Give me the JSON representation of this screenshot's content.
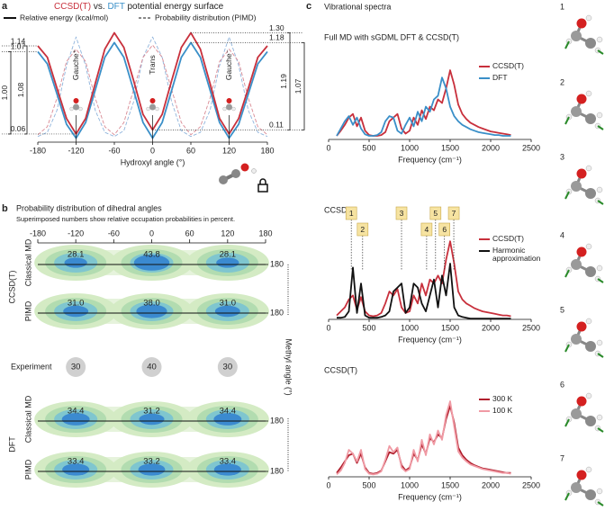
{
  "modes": [
    "1",
    "2",
    "3",
    "4",
    "5",
    "6",
    "7"
  ],
  "chart_data": [
    {
      "type": "line",
      "panel": "a",
      "title_parts": [
        {
          "text": "CCSD(T)",
          "color": "#c8303c"
        },
        {
          "text": " vs. ",
          "color": "#222222"
        },
        {
          "text": "DFT",
          "color": "#3a8fc8"
        },
        {
          "text": " potential energy surface",
          "color": "#222222"
        }
      ],
      "legend": [
        {
          "label": "Relative energy (kcal/mol)",
          "dash": false
        },
        {
          "label": "Probability distribution (PIMD)",
          "dash": true
        }
      ],
      "xlabel": "Hydroxyl angle (°)",
      "xlim": [
        -180,
        180
      ],
      "xticks": [
        -180,
        -120,
        -60,
        0,
        60,
        120,
        180
      ],
      "ylim": [
        -0.04,
        1.35
      ],
      "x": [
        -180,
        -165,
        -150,
        -135,
        -120,
        -105,
        -90,
        -75,
        -60,
        -45,
        -30,
        -15,
        0,
        15,
        30,
        45,
        60,
        75,
        90,
        105,
        120,
        135,
        150,
        165,
        180
      ],
      "series": [
        {
          "color": "#8fb4dc",
          "dash": true,
          "values": [
            0.03,
            0.08,
            0.35,
            0.9,
            1.25,
            0.9,
            0.35,
            0.08,
            0.03,
            0.1,
            0.45,
            1.0,
            1.25,
            1.0,
            0.45,
            0.1,
            0.03,
            0.08,
            0.35,
            0.9,
            1.25,
            0.9,
            0.35,
            0.08,
            0.03
          ]
        },
        {
          "color": "#d98a94",
          "dash": true,
          "values": [
            0.05,
            0.15,
            0.5,
            0.95,
            1.1,
            0.95,
            0.5,
            0.15,
            0.05,
            0.2,
            0.6,
            1.0,
            1.15,
            1.0,
            0.6,
            0.2,
            0.05,
            0.15,
            0.5,
            0.95,
            1.1,
            0.95,
            0.5,
            0.15,
            0.05
          ]
        },
        {
          "color": "#3a8fc8",
          "dash": false,
          "values": [
            1.07,
            0.92,
            0.55,
            0.18,
            0.01,
            0.2,
            0.6,
            1.0,
            1.18,
            1.0,
            0.6,
            0.2,
            0.01,
            0.2,
            0.6,
            1.0,
            1.18,
            1.0,
            0.6,
            0.2,
            0.01,
            0.18,
            0.55,
            0.92,
            1.07
          ]
        },
        {
          "color": "#c8303c",
          "dash": false,
          "values": [
            1.14,
            1.0,
            0.62,
            0.25,
            0.06,
            0.25,
            0.68,
            1.1,
            1.3,
            1.12,
            0.72,
            0.3,
            0.11,
            0.3,
            0.72,
            1.12,
            1.3,
            1.1,
            0.68,
            0.25,
            0.06,
            0.25,
            0.62,
            1.0,
            1.14
          ]
        }
      ],
      "annotations": [
        {
          "label": "Gauche⁺",
          "x": -120
        },
        {
          "label": "Trans",
          "x": 0
        },
        {
          "label": "Gauche⁻",
          "x": 120
        }
      ],
      "levels": [
        {
          "value": 1.14,
          "label": "1.14",
          "side": "left",
          "x": -180,
          "gap": "1.08"
        },
        {
          "value": 1.07,
          "label": "1.07",
          "side": "left",
          "x": -180,
          "gap": "1.00"
        },
        {
          "value": 0.06,
          "label": "0.06",
          "side": "left",
          "x": -120
        },
        {
          "value": 1.3,
          "label": "1.30",
          "side": "right",
          "x": 60,
          "gap": "1.19"
        },
        {
          "value": 1.18,
          "label": "1.18",
          "side": "right",
          "x": 60,
          "gap": "1.07"
        },
        {
          "value": 0.11,
          "label": "0.11",
          "side": "right",
          "x": 0
        }
      ]
    },
    {
      "type": "occupation",
      "panel": "b",
      "title": "Probability distribution of dihedral angles",
      "subtitle": "Superimposed numbers show relative occupation probabilities in percent.",
      "xlim": [
        -180,
        180
      ],
      "xticks": [
        -180,
        -120,
        -60,
        0,
        60,
        120,
        180
      ],
      "x": [
        -120,
        0,
        120
      ],
      "ylabel": "Methyl angle (°)",
      "methyl_tick": 180,
      "groups": [
        {
          "name": "CCSD(T)",
          "color": "#c8303c",
          "rows": [
            {
              "name": "Classical MD",
              "values": [
                28.1,
                43.8,
                28.1
              ]
            },
            {
              "name": "PIMD",
              "values": [
                31.0,
                38.0,
                31.0
              ],
              "value_labels": [
                "31.0",
                "38.0",
                "31.0"
              ]
            }
          ]
        },
        {
          "name": "DFT",
          "color": "#3a8fc8",
          "rows": [
            {
              "name": "Classical MD",
              "values": [
                34.4,
                31.2,
                34.4
              ]
            },
            {
              "name": "PIMD",
              "values": [
                33.4,
                33.2,
                33.4
              ]
            }
          ]
        }
      ],
      "experiment": {
        "name": "Experiment",
        "values": [
          30,
          40,
          30
        ]
      }
    },
    {
      "type": "line",
      "panel": "c",
      "panel_title": "Vibrational spectra",
      "title": "Full MD with sGDML DFT & CCSD(T)",
      "xlabel": "Frequency (cm⁻¹)",
      "xlim": [
        0,
        2500
      ],
      "xticks": [
        0,
        500,
        1000,
        1500,
        2000,
        2500
      ],
      "ylim": [
        0,
        1.05
      ],
      "legend": "upper right",
      "x": [
        100,
        150,
        200,
        250,
        300,
        350,
        400,
        450,
        500,
        550,
        600,
        650,
        700,
        750,
        800,
        850,
        900,
        950,
        1000,
        1050,
        1100,
        1150,
        1200,
        1250,
        1300,
        1350,
        1400,
        1450,
        1500,
        1550,
        1600,
        1650,
        1700,
        1750,
        1800,
        1850,
        1900,
        1950,
        2000,
        2050,
        2100,
        2150,
        2200,
        2250
      ],
      "series": [
        {
          "name": "CCSD(T)",
          "color": "#c8303c",
          "values": [
            0.05,
            0.12,
            0.2,
            0.3,
            0.35,
            0.18,
            0.3,
            0.12,
            0.06,
            0.05,
            0.05,
            0.06,
            0.1,
            0.25,
            0.3,
            0.35,
            0.15,
            0.08,
            0.12,
            0.3,
            0.2,
            0.4,
            0.28,
            0.45,
            0.4,
            0.55,
            0.5,
            0.7,
            0.95,
            0.75,
            0.48,
            0.35,
            0.28,
            0.23,
            0.2,
            0.17,
            0.15,
            0.13,
            0.11,
            0.1,
            0.09,
            0.08,
            0.07,
            0.06
          ]
        },
        {
          "name": "DFT",
          "color": "#3a8fc8",
          "values": [
            0.05,
            0.15,
            0.25,
            0.32,
            0.2,
            0.3,
            0.15,
            0.07,
            0.05,
            0.05,
            0.06,
            0.1,
            0.25,
            0.32,
            0.3,
            0.12,
            0.08,
            0.2,
            0.3,
            0.18,
            0.38,
            0.25,
            0.45,
            0.38,
            0.55,
            0.6,
            0.85,
            0.7,
            0.45,
            0.32,
            0.25,
            0.2,
            0.17,
            0.14,
            0.12,
            0.1,
            0.09,
            0.08,
            0.07,
            0.06,
            0.06,
            0.05,
            0.05,
            0.05
          ]
        }
      ]
    },
    {
      "type": "line",
      "title": "CCSD(T)",
      "xlabel": "Frequency (cm⁻¹)",
      "xlim": [
        0,
        2500
      ],
      "xticks": [
        0,
        500,
        1000,
        1500,
        2000,
        2500
      ],
      "ylim": [
        0,
        1.05
      ],
      "legend": "upper right",
      "x": [
        100,
        150,
        200,
        250,
        300,
        350,
        400,
        450,
        500,
        550,
        600,
        650,
        700,
        750,
        800,
        850,
        900,
        950,
        1000,
        1050,
        1100,
        1150,
        1200,
        1250,
        1300,
        1350,
        1400,
        1450,
        1500,
        1550,
        1600,
        1650,
        1700,
        1750,
        1800,
        1850,
        1900,
        1950,
        2000,
        2050,
        2100,
        2150,
        2200,
        2250
      ],
      "series": [
        {
          "name": "CCSD(T)",
          "color": "#c8303c",
          "values": [
            0.05,
            0.1,
            0.15,
            0.25,
            0.3,
            0.12,
            0.28,
            0.1,
            0.05,
            0.04,
            0.05,
            0.08,
            0.2,
            0.35,
            0.3,
            0.38,
            0.15,
            0.08,
            0.1,
            0.3,
            0.2,
            0.45,
            0.3,
            0.5,
            0.45,
            0.55,
            0.45,
            0.75,
            0.98,
            0.7,
            0.35,
            0.25,
            0.2,
            0.17,
            0.14,
            0.12,
            0.1,
            0.09,
            0.08,
            0.07,
            0.06,
            0.05,
            0.05,
            0.04
          ]
        },
        {
          "name": "Harmonic approximation",
          "color": "#111111",
          "values": [
            0.02,
            0.02,
            0.03,
            0.1,
            0.65,
            0.08,
            0.45,
            0.05,
            0.02,
            0.02,
            0.02,
            0.03,
            0.05,
            0.1,
            0.35,
            0.4,
            0.45,
            0.08,
            0.15,
            0.45,
            0.4,
            0.2,
            0.1,
            0.3,
            0.5,
            0.15,
            0.55,
            0.3,
            0.7,
            0.15,
            0.05,
            0.03,
            0.02,
            0.01,
            0.01,
            0.01,
            0.01,
            0.01,
            0.01,
            0.01,
            0.01,
            0.01,
            0.01,
            0.01
          ]
        }
      ],
      "annotations": [
        {
          "label": "1",
          "x": 280
        },
        {
          "label": "2",
          "x": 420
        },
        {
          "label": "3",
          "x": 900
        },
        {
          "label": "4",
          "x": 1210
        },
        {
          "label": "5",
          "x": 1320
        },
        {
          "label": "6",
          "x": 1430
        },
        {
          "label": "7",
          "x": 1545
        }
      ]
    },
    {
      "type": "line",
      "title": "CCSD(T)",
      "xlabel": "Frequency (cm⁻¹)",
      "xlim": [
        0,
        2500
      ],
      "xticks": [
        0,
        500,
        1000,
        1500,
        2000,
        2500
      ],
      "ylim": [
        0,
        1.05
      ],
      "legend": "upper right",
      "x": [
        100,
        150,
        200,
        250,
        300,
        350,
        400,
        450,
        500,
        550,
        600,
        650,
        700,
        750,
        800,
        850,
        900,
        950,
        1000,
        1050,
        1100,
        1150,
        1200,
        1250,
        1300,
        1350,
        1400,
        1450,
        1500,
        1550,
        1600,
        1650,
        1700,
        1750,
        1800,
        1850,
        1900,
        1950,
        2000,
        2050,
        2100,
        2150,
        2200,
        2250
      ],
      "series": [
        {
          "name": "300 K",
          "color": "#b01e2c",
          "values": [
            0.05,
            0.12,
            0.2,
            0.28,
            0.3,
            0.18,
            0.3,
            0.12,
            0.05,
            0.04,
            0.05,
            0.08,
            0.2,
            0.32,
            0.3,
            0.35,
            0.15,
            0.08,
            0.12,
            0.3,
            0.22,
            0.42,
            0.3,
            0.5,
            0.45,
            0.55,
            0.5,
            0.75,
            0.92,
            0.7,
            0.38,
            0.28,
            0.22,
            0.18,
            0.15,
            0.13,
            0.11,
            0.1,
            0.09,
            0.08,
            0.07,
            0.06,
            0.05,
            0.05
          ]
        },
        {
          "name": "100 K",
          "color": "#f09aa4",
          "values": [
            0.03,
            0.08,
            0.18,
            0.35,
            0.3,
            0.2,
            0.35,
            0.1,
            0.04,
            0.03,
            0.04,
            0.07,
            0.22,
            0.4,
            0.32,
            0.38,
            0.12,
            0.07,
            0.1,
            0.35,
            0.2,
            0.48,
            0.28,
            0.55,
            0.42,
            0.6,
            0.48,
            0.8,
            0.98,
            0.65,
            0.33,
            0.25,
            0.2,
            0.16,
            0.14,
            0.12,
            0.1,
            0.09,
            0.08,
            0.07,
            0.06,
            0.05,
            0.05,
            0.04
          ]
        }
      ]
    }
  ]
}
